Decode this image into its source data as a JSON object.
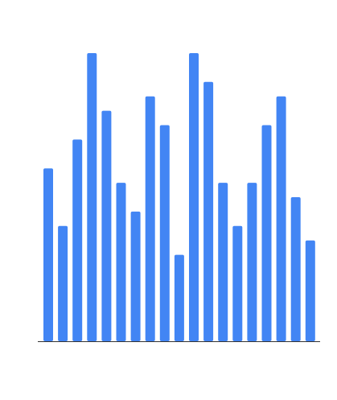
{
  "colors": {
    "bar": "#4285F4",
    "axis": "#333333",
    "background": "#ffffff"
  },
  "chart_data": {
    "type": "bar",
    "title": "",
    "xlabel": "",
    "ylabel": "",
    "grid": false,
    "legend": "none",
    "ylim": [
      0,
      20
    ],
    "categories": [
      "",
      "",
      "",
      "",
      "",
      "",
      "",
      "",
      "",
      "",
      "",
      "",
      "",
      "",
      "",
      "",
      "",
      "",
      ""
    ],
    "values": [
      12,
      8,
      14,
      20,
      16,
      11,
      9,
      17,
      15,
      6,
      20,
      18,
      11,
      8,
      11,
      15,
      17,
      10,
      7
    ]
  }
}
